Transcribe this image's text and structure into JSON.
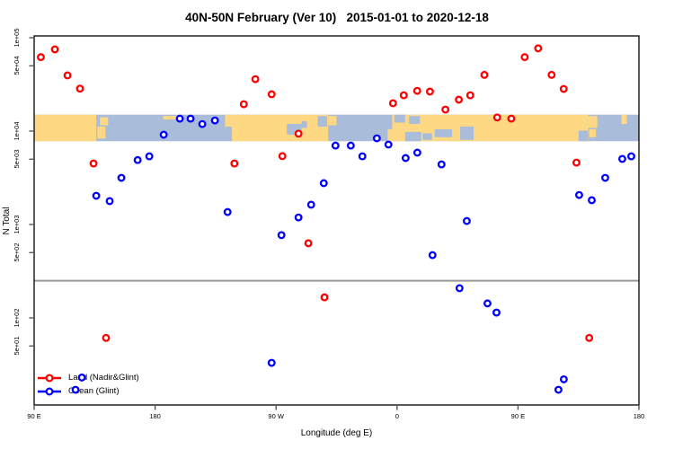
{
  "title": "40N-50N February (Ver 10)   2015-01-01 to 2020-12-18",
  "chart_data": {
    "type": "scatter",
    "title": "40N-50N February (Ver 10)   2015-01-01 to 2020-12-18",
    "xlabel": "Longitude (deg E)",
    "ylabel": "N Total",
    "x_axis_note": "degrees along wrapped longitude axis; 0=90E, 90=180, 180=90W, 270=0, 360=90E, 450=180",
    "x_range_deg": [
      0,
      450
    ],
    "ylim": [
      12,
      105000
    ],
    "y_scale": "log10",
    "x_ticks": [
      {
        "d": 0,
        "label": "90 E"
      },
      {
        "d": 90,
        "label": "180"
      },
      {
        "d": 180,
        "label": "90 W"
      },
      {
        "d": 270,
        "label": "0"
      },
      {
        "d": 360,
        "label": "90 E"
      },
      {
        "d": 450,
        "label": "180"
      }
    ],
    "y_ticks": [
      {
        "v": 100000,
        "label": "1e+05"
      },
      {
        "v": 50000,
        "label": "5e+04"
      },
      {
        "v": 10000,
        "label": "1e+04"
      },
      {
        "v": 5000,
        "label": "5e+03"
      },
      {
        "v": 1000,
        "label": "1e+03"
      },
      {
        "v": 500,
        "label": "5e+02"
      },
      {
        "v": 100,
        "label": "1e+02"
      },
      {
        "v": 50,
        "label": "5e+01"
      }
    ],
    "reference_line_value": 250,
    "reference_line_color": "#999999",
    "series": [
      {
        "name": "Land (Nadir&Glint)",
        "color": "#ff0000",
        "points": [
          [
            5,
            62000
          ],
          [
            15.4,
            75000
          ],
          [
            24.8,
            39500
          ],
          [
            34.1,
            28500
          ],
          [
            44.2,
            4500
          ],
          [
            53.5,
            61
          ],
          [
            149,
            4500
          ],
          [
            156,
            19400
          ],
          [
            164.6,
            36000
          ],
          [
            176.7,
            24800
          ],
          [
            184.7,
            5400
          ],
          [
            196.7,
            9400
          ],
          [
            204,
            630
          ],
          [
            216,
            166
          ],
          [
            267,
            19900
          ],
          [
            275,
            24200
          ],
          [
            285,
            27000
          ],
          [
            294.5,
            26500
          ],
          [
            306,
            17000
          ],
          [
            316,
            21700
          ],
          [
            324.5,
            24200
          ],
          [
            335,
            40000
          ],
          [
            344.5,
            14000
          ],
          [
            355,
            13600
          ],
          [
            365,
            62000
          ],
          [
            375,
            77000
          ],
          [
            385,
            40000
          ],
          [
            394,
            28300
          ],
          [
            403.5,
            4600
          ],
          [
            413,
            61
          ]
        ]
      },
      {
        "name": "Ocean (Glint)",
        "color": "#0000ff",
        "points": [
          [
            30.8,
            17
          ],
          [
            35.5,
            23
          ],
          [
            46.2,
            2030
          ],
          [
            56.2,
            1780
          ],
          [
            64.9,
            3160
          ],
          [
            77,
            4900
          ],
          [
            85.7,
            5370
          ],
          [
            96.4,
            9150
          ],
          [
            108.4,
            13600
          ],
          [
            116.4,
            13600
          ],
          [
            125.1,
            11900
          ],
          [
            134.5,
            13000
          ],
          [
            143.9,
            1360
          ],
          [
            176.7,
            33
          ],
          [
            184,
            770
          ],
          [
            196.7,
            1190
          ],
          [
            206.1,
            1630
          ],
          [
            215.5,
            2770
          ],
          [
            224.2,
            7000
          ],
          [
            235.6,
            7000
          ],
          [
            244.2,
            5370
          ],
          [
            255,
            8370
          ],
          [
            263.6,
            7180
          ],
          [
            276.4,
            5150
          ],
          [
            285.1,
            5880
          ],
          [
            296.4,
            470
          ],
          [
            303.1,
            4400
          ],
          [
            316.5,
            208
          ],
          [
            321.9,
            1090
          ],
          [
            337.3,
            143
          ],
          [
            344,
            114
          ],
          [
            390.1,
            17
          ],
          [
            394.1,
            22
          ],
          [
            405.5,
            2070
          ],
          [
            414.9,
            1820
          ],
          [
            424.9,
            3160
          ],
          [
            437.6,
            5040
          ],
          [
            444.3,
            5370
          ]
        ]
      }
    ],
    "map_band": {
      "description": "40N-50N land/ocean strip drawn across plot",
      "value_range": [
        7800,
        15000
      ],
      "ocean_color": "#a9bcd9",
      "land_color": "#ffd884",
      "land_segments_deg": [
        [
          0,
          46.2
        ],
        [
          147.2,
          218.8
        ],
        [
          266.4,
          412.3
        ]
      ],
      "lakes": [
        [
          188,
          199,
          0.35,
          0.75
        ],
        [
          199,
          203,
          0.25,
          0.5
        ],
        [
          211,
          218,
          0.05,
          0.45
        ],
        [
          268,
          276,
          0.0,
          0.3
        ],
        [
          279,
          287,
          0.05,
          0.35
        ],
        [
          276,
          288,
          0.65,
          1.0
        ],
        [
          289,
          296,
          0.7,
          0.95
        ],
        [
          298,
          311,
          0.55,
          0.85
        ],
        [
          317,
          327,
          0.45,
          0.95
        ],
        [
          405,
          412,
          0.6,
          1.0
        ]
      ],
      "islands": [
        [
          47,
          53,
          0.45,
          0.9
        ],
        [
          49,
          55,
          0.1,
          0.4
        ],
        [
          96,
          108,
          0.05,
          0.18
        ],
        [
          142,
          147.2,
          0.0,
          0.45
        ],
        [
          219,
          225,
          0.05,
          0.4
        ],
        [
          263,
          266.4,
          0.55,
          1.0
        ],
        [
          412.3,
          419,
          0.05,
          0.5
        ],
        [
          413,
          418,
          0.55,
          0.85
        ],
        [
          437,
          441,
          0.0,
          0.35
        ]
      ]
    }
  }
}
